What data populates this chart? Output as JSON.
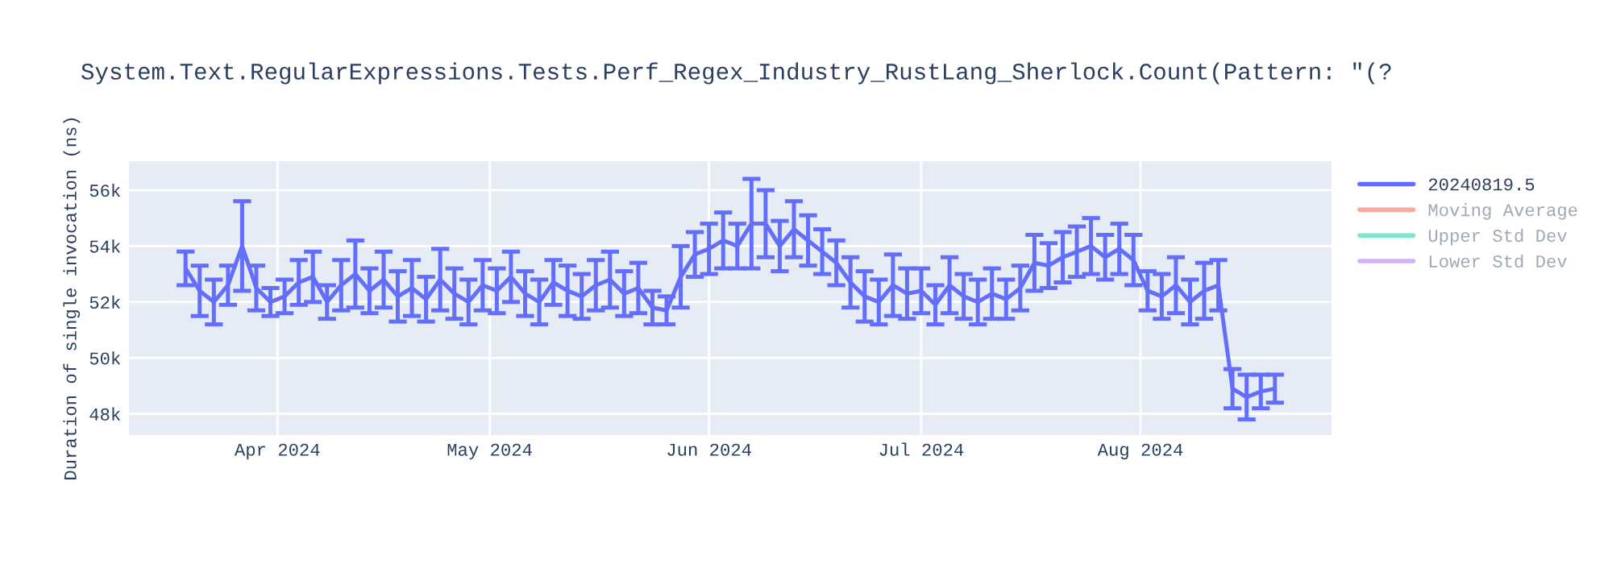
{
  "chart_data": {
    "type": "line",
    "title": "System.Text.RegularExpressions.Tests.Perf_Regex_Industry_RustLang_Sherlock.Count(Pattern: \"(?",
    "ylabel": "Duration of single invocation (ns)",
    "x": [
      "2024-03-19",
      "2024-03-21",
      "2024-03-23",
      "2024-03-25",
      "2024-03-27",
      "2024-03-29",
      "2024-03-31",
      "2024-04-02",
      "2024-04-04",
      "2024-04-06",
      "2024-04-08",
      "2024-04-10",
      "2024-04-12",
      "2024-04-14",
      "2024-04-16",
      "2024-04-18",
      "2024-04-20",
      "2024-04-22",
      "2024-04-24",
      "2024-04-26",
      "2024-04-28",
      "2024-04-30",
      "2024-05-02",
      "2024-05-04",
      "2024-05-06",
      "2024-05-08",
      "2024-05-10",
      "2024-05-12",
      "2024-05-14",
      "2024-05-16",
      "2024-05-18",
      "2024-05-20",
      "2024-05-22",
      "2024-05-24",
      "2024-05-26",
      "2024-05-28",
      "2024-05-30",
      "2024-06-01",
      "2024-06-03",
      "2024-06-05",
      "2024-06-07",
      "2024-06-09",
      "2024-06-11",
      "2024-06-13",
      "2024-06-15",
      "2024-06-17",
      "2024-06-19",
      "2024-06-21",
      "2024-06-23",
      "2024-06-25",
      "2024-06-27",
      "2024-06-29",
      "2024-07-01",
      "2024-07-03",
      "2024-07-05",
      "2024-07-07",
      "2024-07-09",
      "2024-07-11",
      "2024-07-13",
      "2024-07-15",
      "2024-07-17",
      "2024-07-19",
      "2024-07-21",
      "2024-07-23",
      "2024-07-25",
      "2024-07-27",
      "2024-07-29",
      "2024-07-31",
      "2024-08-02",
      "2024-08-04",
      "2024-08-06",
      "2024-08-08",
      "2024-08-10",
      "2024-08-12",
      "2024-08-14",
      "2024-08-16",
      "2024-08-18",
      "2024-08-20"
    ],
    "series": [
      {
        "name": "20240819.5",
        "color": "#636efa",
        "values": [
          53200,
          52400,
          52000,
          52600,
          54000,
          52500,
          52000,
          52200,
          52700,
          52900,
          52000,
          52600,
          53000,
          52400,
          52800,
          52200,
          52500,
          52100,
          52800,
          52300,
          52000,
          52600,
          52400,
          52900,
          52300,
          52000,
          52700,
          52400,
          52200,
          52600,
          52800,
          52300,
          52500,
          51800,
          51700,
          52900,
          53700,
          53900,
          54200,
          54000,
          54800,
          54800,
          54000,
          54600,
          54200,
          53800,
          53400,
          52700,
          52200,
          52000,
          52600,
          52300,
          52400,
          51900,
          52600,
          52200,
          52000,
          52300,
          52100,
          52500,
          53400,
          53300,
          53600,
          53800,
          54000,
          53600,
          53900,
          53500,
          52400,
          52200,
          52600,
          52000,
          52400,
          52600,
          48900,
          48600,
          48800,
          48900
        ],
        "errors": [
          600,
          900,
          800,
          700,
          1600,
          800,
          500,
          600,
          800,
          900,
          600,
          900,
          1200,
          800,
          1000,
          900,
          1000,
          800,
          1100,
          900,
          800,
          900,
          800,
          900,
          800,
          800,
          800,
          900,
          800,
          900,
          1000,
          800,
          900,
          600,
          500,
          1100,
          800,
          900,
          1000,
          800,
          1600,
          1200,
          900,
          1000,
          900,
          800,
          800,
          900,
          900,
          800,
          1100,
          900,
          800,
          700,
          1000,
          800,
          800,
          900,
          700,
          800,
          1000,
          800,
          900,
          900,
          1000,
          800,
          900,
          900,
          700,
          800,
          1000,
          800,
          1000,
          900,
          700,
          800,
          600,
          500
        ]
      },
      {
        "name": "Moving Average",
        "color": "#f7aa9d",
        "values": [
          null,
          null,
          null,
          null,
          null,
          null,
          null,
          null,
          null,
          null,
          null,
          null,
          null,
          null,
          null,
          null,
          null,
          null,
          null,
          null,
          null,
          null,
          null,
          null,
          null,
          null,
          null,
          null,
          null,
          null,
          null,
          null,
          null,
          null,
          null,
          null,
          null,
          null,
          null,
          null,
          null,
          null,
          null,
          null,
          null,
          null,
          null,
          null,
          null,
          null,
          null,
          null,
          null,
          null,
          null,
          null,
          null,
          null,
          null,
          null,
          null,
          null,
          null,
          null,
          null,
          null,
          null,
          null,
          null,
          null,
          null,
          null,
          null,
          null,
          null,
          null,
          null,
          null
        ]
      },
      {
        "name": "Upper Std Dev",
        "color": "#80e6cb",
        "values": [
          null,
          null,
          null,
          null,
          null,
          null,
          null,
          null,
          null,
          null,
          null,
          null,
          null,
          null,
          null,
          null,
          null,
          null,
          null,
          null,
          null,
          null,
          null,
          null,
          null,
          null,
          null,
          null,
          null,
          null,
          null,
          null,
          null,
          null,
          null,
          null,
          null,
          null,
          null,
          null,
          null,
          null,
          null,
          null,
          null,
          null,
          null,
          null,
          null,
          null,
          null,
          null,
          null,
          null,
          null,
          null,
          null,
          null,
          null,
          null,
          null,
          null,
          null,
          null,
          null,
          null,
          null,
          null,
          null,
          null,
          null,
          null,
          null,
          null,
          null,
          null,
          null,
          null
        ]
      },
      {
        "name": "Lower Std Dev",
        "color": "#d5b1fd",
        "values": [
          null,
          null,
          null,
          null,
          null,
          null,
          null,
          null,
          null,
          null,
          null,
          null,
          null,
          null,
          null,
          null,
          null,
          null,
          null,
          null,
          null,
          null,
          null,
          null,
          null,
          null,
          null,
          null,
          null,
          null,
          null,
          null,
          null,
          null,
          null,
          null,
          null,
          null,
          null,
          null,
          null,
          null,
          null,
          null,
          null,
          null,
          null,
          null,
          null,
          null,
          null,
          null,
          null,
          null,
          null,
          null,
          null,
          null,
          null,
          null,
          null,
          null,
          null,
          null,
          null,
          null,
          null,
          null,
          null,
          null,
          null,
          null,
          null,
          null,
          null,
          null,
          null,
          null
        ]
      }
    ],
    "xlim": [
      "2024-03-11",
      "2024-08-28"
    ],
    "xticks": [
      {
        "value": "2024-04-01",
        "label": "Apr 2024"
      },
      {
        "value": "2024-05-01",
        "label": "May 2024"
      },
      {
        "value": "2024-06-01",
        "label": "Jun 2024"
      },
      {
        "value": "2024-07-01",
        "label": "Jul 2024"
      },
      {
        "value": "2024-08-01",
        "label": "Aug 2024"
      }
    ],
    "ylim": [
      47250,
      57030
    ],
    "yticks": [
      {
        "value": 48000,
        "label": "48k"
      },
      {
        "value": 50000,
        "label": "50k"
      },
      {
        "value": 52000,
        "label": "52k"
      },
      {
        "value": 54000,
        "label": "54k"
      },
      {
        "value": 56000,
        "label": "56k"
      }
    ],
    "grid": true,
    "legend": "right"
  }
}
